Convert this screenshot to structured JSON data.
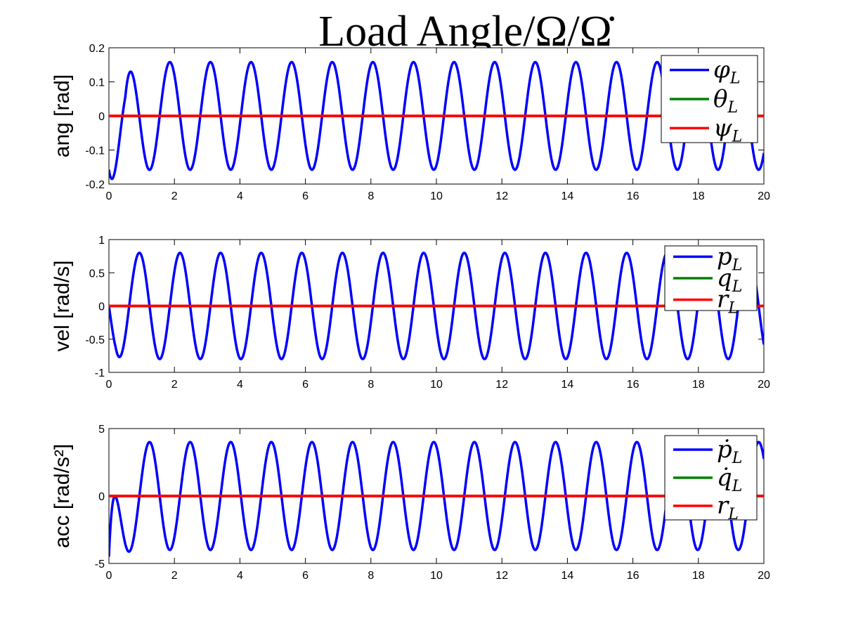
{
  "chart_data": [
    {
      "type": "line",
      "title": "Load Angle/Ω/Ω̇",
      "ylabel": "ang [rad]",
      "xlabel": "",
      "xlim": [
        0,
        20
      ],
      "ylim": [
        -0.2,
        0.2
      ],
      "xticks": [
        0,
        2,
        4,
        6,
        8,
        10,
        12,
        14,
        16,
        18,
        20
      ],
      "yticks": [
        -0.2,
        -0.1,
        0,
        0.1,
        0.2
      ],
      "ytick_labels": [
        "-0.2",
        "-0.1",
        "0",
        "0.1",
        "0.2"
      ],
      "legend_position": "top-right",
      "series": [
        {
          "name": "φ",
          "sub": "L",
          "color": "#0000ff",
          "kind": "sine",
          "amplitude": 0.158,
          "period": 1.24,
          "phase": 4.712,
          "start_value": 0.0,
          "start_min": -0.18,
          "start_min_x": 0.5
        },
        {
          "name": "θ",
          "sub": "L",
          "color": "#008000",
          "kind": "constant",
          "value": 0
        },
        {
          "name": "ψ",
          "sub": "L",
          "color": "#ff0000",
          "kind": "constant",
          "value": 0
        }
      ]
    },
    {
      "type": "line",
      "ylabel": "vel [rad/s]",
      "xlabel": "",
      "xlim": [
        0,
        20
      ],
      "ylim": [
        -1,
        1
      ],
      "xticks": [
        0,
        2,
        4,
        6,
        8,
        10,
        12,
        14,
        16,
        18,
        20
      ],
      "yticks": [
        -1,
        -0.5,
        0,
        0.5,
        1
      ],
      "ytick_labels": [
        "-1",
        "-0.5",
        "0",
        "0.5",
        "1"
      ],
      "legend_position": "top-right",
      "series": [
        {
          "name": "p",
          "sub": "L",
          "color": "#0000ff",
          "kind": "sine",
          "amplitude": 0.8,
          "period": 1.24,
          "phase": 3.14159,
          "start_value": 0.0,
          "start_min": -0.56,
          "start_min_x": 0.2
        },
        {
          "name": "q",
          "sub": "L",
          "color": "#008000",
          "kind": "constant",
          "value": 0
        },
        {
          "name": "r",
          "sub": "L",
          "color": "#ff0000",
          "kind": "constant",
          "value": 0
        }
      ]
    },
    {
      "type": "line",
      "ylabel": "acc [rad/s²]",
      "xlabel": "",
      "xlim": [
        0,
        20
      ],
      "ylim": [
        -5,
        5
      ],
      "xticks": [
        0,
        2,
        4,
        6,
        8,
        10,
        12,
        14,
        16,
        18,
        20
      ],
      "yticks": [
        -5,
        0,
        5
      ],
      "ytick_labels": [
        "-5",
        "0",
        "5"
      ],
      "legend_position": "top-right",
      "series": [
        {
          "name": "ṗ",
          "sub": "L",
          "color": "#0000ff",
          "kind": "sine",
          "amplitude": 4.0,
          "period": 1.24,
          "phase": 1.5708,
          "start_value": -4.5,
          "start_min": -4.5,
          "start_min_x": 0.0
        },
        {
          "name": "q̇",
          "sub": "L",
          "color": "#008000",
          "kind": "constant",
          "value": 0
        },
        {
          "name": "r",
          "sub": "L",
          "color": "#ff0000",
          "kind": "constant",
          "value": 0
        }
      ]
    }
  ]
}
